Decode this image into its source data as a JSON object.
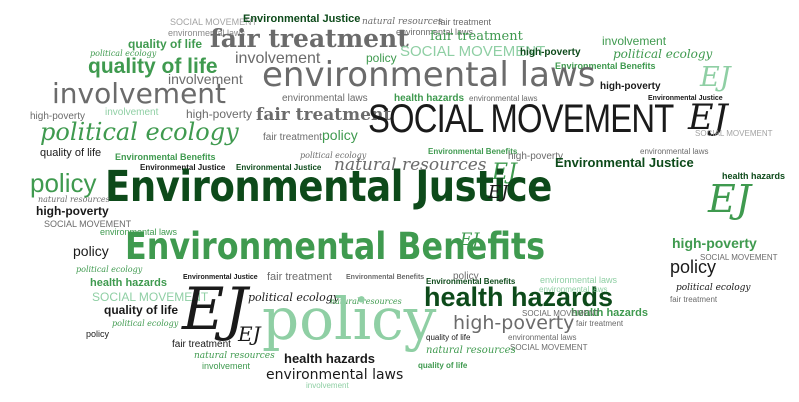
{
  "palette": {
    "dark_green": "#0d4a1a",
    "mid_green": "#3f9a4f",
    "light_green": "#8fcfa4",
    "gray": "#6b6b6b",
    "light_gray": "#a3a3a3",
    "black": "#1a1a1a",
    "background": "#ffffff"
  },
  "words": [
    {
      "text": "Environmental Justice",
      "color": "#0d4a1a"
    },
    {
      "text": "Environmental Benefits",
      "color": "#3f9a4f"
    },
    {
      "text": "environmental laws",
      "color": "#6b6b6b"
    },
    {
      "text": "SOCIAL MOVEMENT",
      "color": "#1a1a1a"
    },
    {
      "text": "EJ",
      "color": "#1a1a1a"
    },
    {
      "text": "policy",
      "color": "#8fcfa4"
    },
    {
      "text": "health hazards",
      "color": "#0d4a1a"
    },
    {
      "text": "political ecology",
      "color": "#3f9a4f"
    },
    {
      "text": "involvement",
      "color": "#6b6b6b"
    },
    {
      "text": "fair treatment",
      "color": "#6b6b6b"
    },
    {
      "text": "quality of life",
      "color": "#3f9a4f"
    },
    {
      "text": "high-poverty",
      "color": "#6b6b6b"
    },
    {
      "text": "natural resources",
      "color": "#6b6b6b"
    },
    {
      "text": "EJ",
      "color": "#8fcfa4"
    },
    {
      "text": "policy",
      "color": "#3f9a4f"
    },
    {
      "text": "Environmental Justice",
      "color": "#0d4a1a"
    },
    {
      "text": "environmental laws",
      "color": "#1a1a1a"
    }
  ]
}
